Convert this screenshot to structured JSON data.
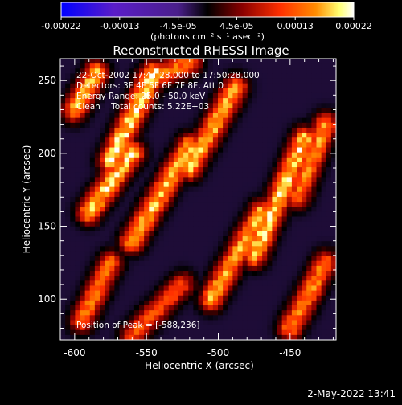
{
  "colorbar": {
    "ticks": [
      "-0.00022",
      "-0.00013",
      "-4.5e-05",
      "4.5e-05",
      "0.00013",
      "0.00022"
    ],
    "unit_label": "(photons cm⁻² s⁻¹ asec⁻²)"
  },
  "info": {
    "time": "22-Oct-2002 17:44:28.000 to 17:50:28.000",
    "detectors": "Detectors: 3F 4F 5F 6F 7F 8F, Att 0",
    "energy": "Energy Range: 25.0 - 50.0 keV",
    "counts": "Clean    Total counts: 5.22E+03",
    "peak": "Position of Peak = [-588,236]"
  },
  "footer": {
    "date": "2-May-2022 13:41"
  },
  "chart_data": {
    "type": "heatmap",
    "title": "Reconstructed RHESSI Image",
    "xlabel": "Heliocentric X (arcsec)",
    "ylabel": "Heliocentric Y (arcsec)",
    "xlim": [
      -610,
      -418
    ],
    "ylim": [
      72,
      265
    ],
    "xticks": [
      "-600",
      "-550",
      "-500",
      "-450"
    ],
    "yticks": [
      "100",
      "150",
      "200",
      "250"
    ],
    "xtick_values": [
      -600,
      -550,
      -500,
      -450
    ],
    "ytick_values": [
      100,
      150,
      200,
      250
    ],
    "colormap": [
      "#0000ff",
      "#5a1dc8",
      "#4a1f8a",
      "#000000",
      "#8b0000",
      "#ff3000",
      "#ff8c00",
      "#ffff70",
      "#ffffff"
    ],
    "peak": [
      -588,
      236
    ],
    "ridges": [
      {
        "x0": -600,
        "y0": 230,
        "x1": -585,
        "y1": 255,
        "peak": 0.85
      },
      {
        "x0": -590,
        "y0": 160,
        "x1": -560,
        "y1": 200,
        "peak": 0.9
      },
      {
        "x0": -575,
        "y0": 195,
        "x1": -545,
        "y1": 255,
        "peak": 0.95
      },
      {
        "x0": -560,
        "y0": 140,
        "x1": -520,
        "y1": 205,
        "peak": 0.85
      },
      {
        "x0": -520,
        "y0": 190,
        "x1": -488,
        "y1": 245,
        "peak": 0.85
      },
      {
        "x0": -505,
        "y0": 100,
        "x1": -470,
        "y1": 160,
        "peak": 0.8
      },
      {
        "x0": -475,
        "y0": 130,
        "x1": -440,
        "y1": 210,
        "peak": 0.9
      },
      {
        "x0": -445,
        "y0": 170,
        "x1": -425,
        "y1": 220,
        "peak": 0.75
      },
      {
        "x0": -450,
        "y0": 80,
        "x1": -425,
        "y1": 125,
        "peak": 0.75
      },
      {
        "x0": -595,
        "y0": 85,
        "x1": -575,
        "y1": 125,
        "peak": 0.7
      },
      {
        "x0": -560,
        "y0": 75,
        "x1": -525,
        "y1": 110,
        "peak": 0.6
      },
      {
        "x0": -550,
        "y0": 250,
        "x1": -520,
        "y1": 262,
        "peak": 0.7
      }
    ]
  }
}
